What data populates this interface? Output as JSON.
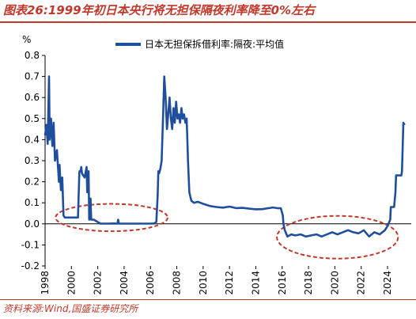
{
  "figure": {
    "title": "图表26:1999年初日本央行将无担保隔夜利率降至0%左右",
    "source": "资料来源:Wind,国盛证券研究所"
  },
  "colors": {
    "accent": "#c0392b",
    "series_line": "#1f4e9c",
    "ellipse": "#c0392b"
  },
  "chart_data": {
    "type": "line",
    "title": "",
    "ylabel_unit": "%",
    "xlim": [
      1998,
      2025.8
    ],
    "ylim": [
      -0.2,
      0.8
    ],
    "yticks": [
      0.8,
      0.7,
      0.6,
      0.5,
      0.4,
      0.3,
      0.2,
      0.1,
      0.0,
      -0.1,
      -0.2
    ],
    "ytick_labels": [
      "0.8",
      "0.7",
      "0.6",
      "0.5",
      "0.4",
      "0.3",
      "0.2",
      "0.1",
      "0.0",
      "-0.1",
      "-0.2"
    ],
    "xticks": [
      1998,
      2000,
      2002,
      2004,
      2006,
      2008,
      2010,
      2012,
      2014,
      2016,
      2018,
      2020,
      2022,
      2024
    ],
    "xtick_labels": [
      "1998",
      "2000",
      "2002",
      "2004",
      "2006",
      "2008",
      "2010",
      "2012",
      "2014",
      "2016",
      "2018",
      "2020",
      "2022",
      "2024"
    ],
    "legend_position": "top",
    "grid": false,
    "series": [
      {
        "name": "日本无担保拆借利率:隔夜:平均值",
        "x": [
          1998.0,
          1998.1,
          1998.2,
          1998.3,
          1998.35,
          1998.45,
          1998.55,
          1998.65,
          1998.75,
          1998.9,
          1999.05,
          1999.1,
          1999.2,
          1999.3,
          1999.4,
          1999.5,
          1999.6,
          1999.75,
          1999.9,
          2000.2,
          2000.5,
          2000.6,
          2000.62,
          2000.7,
          2000.75,
          2000.8,
          2001.0,
          2001.15,
          2001.2,
          2001.3,
          2001.35,
          2001.45,
          2001.5,
          2001.55,
          2001.7,
          2002.2,
          2002.7,
          2003.2,
          2003.5,
          2003.55,
          2003.6,
          2004.0,
          2004.5,
          2005.0,
          2005.5,
          2006.0,
          2006.3,
          2006.45,
          2006.55,
          2006.6,
          2006.65,
          2006.75,
          2006.85,
          2006.95,
          2007.05,
          2007.15,
          2007.25,
          2007.35,
          2007.45,
          2007.55,
          2007.65,
          2007.75,
          2007.85,
          2007.95,
          2008.05,
          2008.15,
          2008.25,
          2008.35,
          2008.45,
          2008.55,
          2008.65,
          2008.75,
          2008.8,
          2008.85,
          2008.95,
          2009.1,
          2009.3,
          2009.6,
          2010.0,
          2010.5,
          2011.0,
          2011.5,
          2012.0,
          2012.5,
          2013.0,
          2013.5,
          2014.0,
          2014.5,
          2015.0,
          2015.3,
          2015.6,
          2015.9,
          2016.05,
          2016.1,
          2016.2,
          2016.4,
          2016.7,
          2017.0,
          2017.4,
          2017.8,
          2018.2,
          2018.6,
          2019.0,
          2019.4,
          2019.8,
          2020.2,
          2020.6,
          2021.0,
          2021.4,
          2021.8,
          2022.2,
          2022.6,
          2023.0,
          2023.4,
          2023.8,
          2024.0,
          2024.2,
          2024.25,
          2024.5,
          2024.6,
          2024.65,
          2024.9,
          2025.05,
          2025.1,
          2025.2,
          2025.3
        ],
        "values": [
          0.42,
          0.47,
          0.38,
          0.7,
          0.4,
          0.5,
          0.37,
          0.48,
          0.3,
          0.35,
          0.2,
          0.28,
          0.16,
          0.22,
          0.04,
          0.03,
          0.03,
          0.03,
          0.03,
          0.03,
          0.03,
          0.24,
          0.25,
          0.25,
          0.27,
          0.24,
          0.22,
          0.27,
          0.15,
          0.25,
          0.02,
          0.12,
          0.02,
          0.02,
          0.02,
          0.001,
          0.001,
          0.002,
          0.001,
          0.02,
          0.001,
          0.001,
          0.001,
          0.001,
          0.001,
          0.001,
          0.002,
          0.01,
          0.14,
          0.25,
          0.24,
          0.26,
          0.3,
          0.5,
          0.7,
          0.6,
          0.45,
          0.52,
          0.6,
          0.5,
          0.45,
          0.55,
          0.48,
          0.58,
          0.5,
          0.52,
          0.48,
          0.55,
          0.5,
          0.52,
          0.48,
          0.5,
          0.4,
          0.3,
          0.15,
          0.11,
          0.1,
          0.105,
          0.095,
          0.085,
          0.08,
          0.077,
          0.082,
          0.075,
          0.076,
          0.072,
          0.069,
          0.07,
          0.075,
          0.078,
          0.075,
          0.074,
          0.04,
          0.0,
          -0.03,
          -0.06,
          -0.05,
          -0.055,
          -0.05,
          -0.06,
          -0.055,
          -0.05,
          -0.06,
          -0.05,
          -0.04,
          -0.05,
          -0.04,
          -0.03,
          -0.04,
          -0.045,
          -0.03,
          -0.06,
          -0.04,
          -0.05,
          -0.03,
          -0.01,
          0.02,
          0.08,
          0.08,
          0.15,
          0.23,
          0.23,
          0.23,
          0.25,
          0.48,
          0.47
        ]
      }
    ],
    "annotations": [
      {
        "type": "ellipse",
        "x_range": [
          1998.8,
          2007.3
        ],
        "y_range": [
          -0.035,
          0.095
        ]
      },
      {
        "type": "ellipse",
        "x_range": [
          2015.6,
          2024.8
        ],
        "y_range": [
          -0.165,
          0.038
        ]
      }
    ]
  }
}
